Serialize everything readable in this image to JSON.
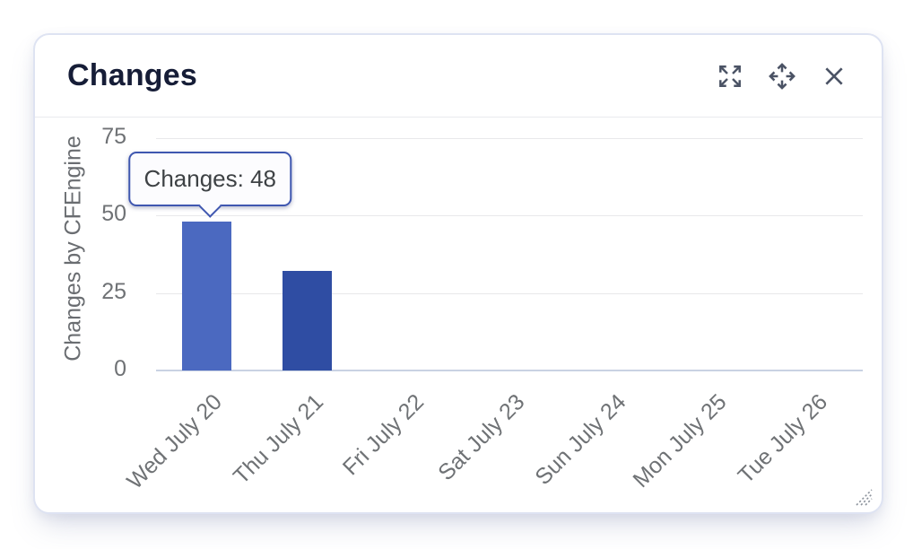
{
  "widget": {
    "title": "Changes",
    "toolbar": {
      "icons": [
        "expand-icon",
        "move-icon",
        "close-icon"
      ]
    }
  },
  "tooltip": {
    "label": "Changes",
    "value": 48,
    "text": "Changes: 48",
    "border_color": "#3f57b0"
  },
  "chart_data": {
    "type": "bar",
    "title": "Changes",
    "xlabel": "",
    "ylabel": "Changes by CFEngine",
    "categories": [
      "Wed July 20",
      "Thu July 21",
      "Fri July 22",
      "Sat July 23",
      "Sun July 24",
      "Mon July 25",
      "Tue July 26"
    ],
    "values": [
      48,
      32,
      0,
      0,
      0,
      0,
      0
    ],
    "ylim": [
      0,
      75
    ],
    "y_ticks": [
      0,
      25,
      50,
      75
    ],
    "grid": "horizontal",
    "legend": "none",
    "bar_color": "#2f4da3",
    "bar_color_highlight": "#4b69c0",
    "highlighted_index": 0
  }
}
